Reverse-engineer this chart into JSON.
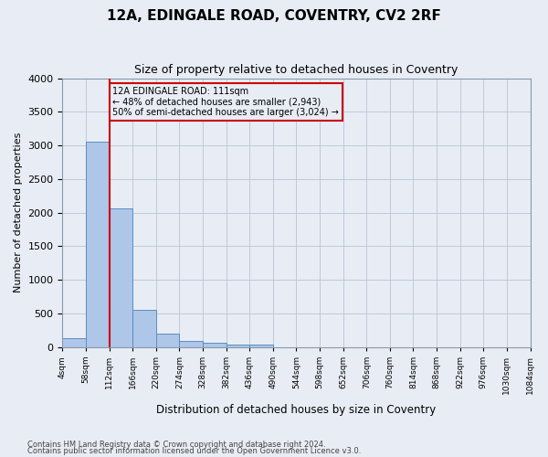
{
  "title": "12A, EDINGALE ROAD, COVENTRY, CV2 2RF",
  "subtitle": "Size of property relative to detached houses in Coventry",
  "xlabel": "Distribution of detached houses by size in Coventry",
  "ylabel": "Number of detached properties",
  "bin_edges": [
    4,
    58,
    112,
    166,
    220,
    274,
    328,
    382,
    436,
    490,
    544,
    598,
    652,
    706,
    760,
    814,
    868,
    922,
    976,
    1030,
    1084
  ],
  "bin_labels": [
    "4sqm",
    "58sqm",
    "112sqm",
    "166sqm",
    "220sqm",
    "274sqm",
    "328sqm",
    "382sqm",
    "436sqm",
    "490sqm",
    "544sqm",
    "598sqm",
    "652sqm",
    "706sqm",
    "760sqm",
    "814sqm",
    "868sqm",
    "922sqm",
    "976sqm",
    "1030sqm",
    "1084sqm"
  ],
  "bar_values": [
    130,
    3060,
    2060,
    560,
    200,
    90,
    60,
    40,
    40,
    0,
    0,
    0,
    0,
    0,
    0,
    0,
    0,
    0,
    0,
    0
  ],
  "bar_color": "#aec6e8",
  "bar_edge_color": "#5a8fc0",
  "vline_position": 1.5,
  "vline_color": "#cc0000",
  "annotation_text": "12A EDINGALE ROAD: 111sqm\n← 48% of detached houses are smaller (2,943)\n50% of semi-detached houses are larger (3,024) →",
  "annotation_box_color": "#cc0000",
  "ylim": [
    0,
    4000
  ],
  "yticks": [
    0,
    500,
    1000,
    1500,
    2000,
    2500,
    3000,
    3500,
    4000
  ],
  "grid_color": "#c0c8d8",
  "bg_color": "#e8edf5",
  "footer1": "Contains HM Land Registry data © Crown copyright and database right 2024.",
  "footer2": "Contains public sector information licensed under the Open Government Licence v3.0."
}
